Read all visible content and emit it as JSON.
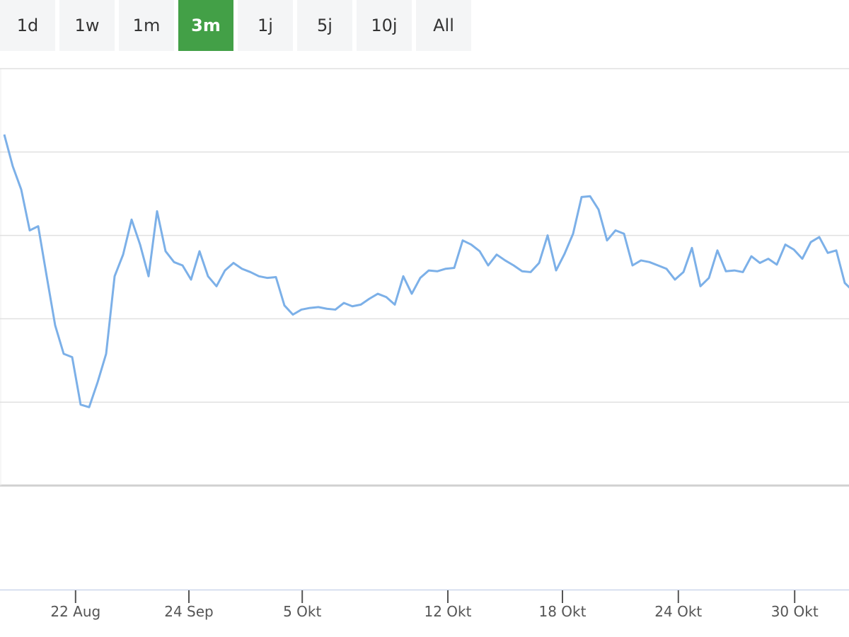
{
  "range_buttons": {
    "labels": [
      "1d",
      "1w",
      "1m",
      "3m",
      "1j",
      "5j",
      "10j",
      "All"
    ],
    "selected": 3
  },
  "chart_data": {
    "type": "line",
    "color": "#7cb0e8",
    "values": [
      4.21,
      3.83,
      3.55,
      3.06,
      3.11,
      2.51,
      1.92,
      1.58,
      1.54,
      0.97,
      0.94,
      1.24,
      1.58,
      2.51,
      2.77,
      3.19,
      2.89,
      2.51,
      3.29,
      2.81,
      2.68,
      2.64,
      2.47,
      2.81,
      2.51,
      2.39,
      2.58,
      2.67,
      2.6,
      2.56,
      2.51,
      2.49,
      2.5,
      2.16,
      2.05,
      2.11,
      2.13,
      2.14,
      2.12,
      2.11,
      2.19,
      2.15,
      2.17,
      2.24,
      2.3,
      2.26,
      2.17,
      2.51,
      2.3,
      2.49,
      2.58,
      2.57,
      2.6,
      2.61,
      2.94,
      2.89,
      2.81,
      2.64,
      2.77,
      2.7,
      2.64,
      2.57,
      2.56,
      2.67,
      3.0,
      2.58,
      2.78,
      3.02,
      3.46,
      3.47,
      3.31,
      2.94,
      3.06,
      3.02,
      2.64,
      2.7,
      2.68,
      2.64,
      2.6,
      2.47,
      2.56,
      2.85,
      2.39,
      2.49,
      2.82,
      2.57,
      2.58,
      2.56,
      2.75,
      2.67,
      2.72,
      2.65,
      2.89,
      2.83,
      2.72,
      2.92,
      2.98,
      2.79,
      2.82,
      2.43,
      2.33
    ],
    "xlim": [
      0,
      100
    ],
    "xticks": [
      {
        "value": 8.9,
        "label": "22 Aug"
      },
      {
        "value": 22.25,
        "label": "24 Sep"
      },
      {
        "value": 35.6,
        "label": "5 Okt"
      },
      {
        "value": 52.75,
        "label": "12 Okt"
      },
      {
        "value": 66.25,
        "label": "18 Okt"
      },
      {
        "value": 79.9,
        "label": "24 Okt"
      },
      {
        "value": 93.6,
        "label": "30 Okt"
      }
    ],
    "ylim": [
      0,
      5
    ],
    "ygrid": [
      1,
      2,
      3,
      4,
      5
    ]
  }
}
